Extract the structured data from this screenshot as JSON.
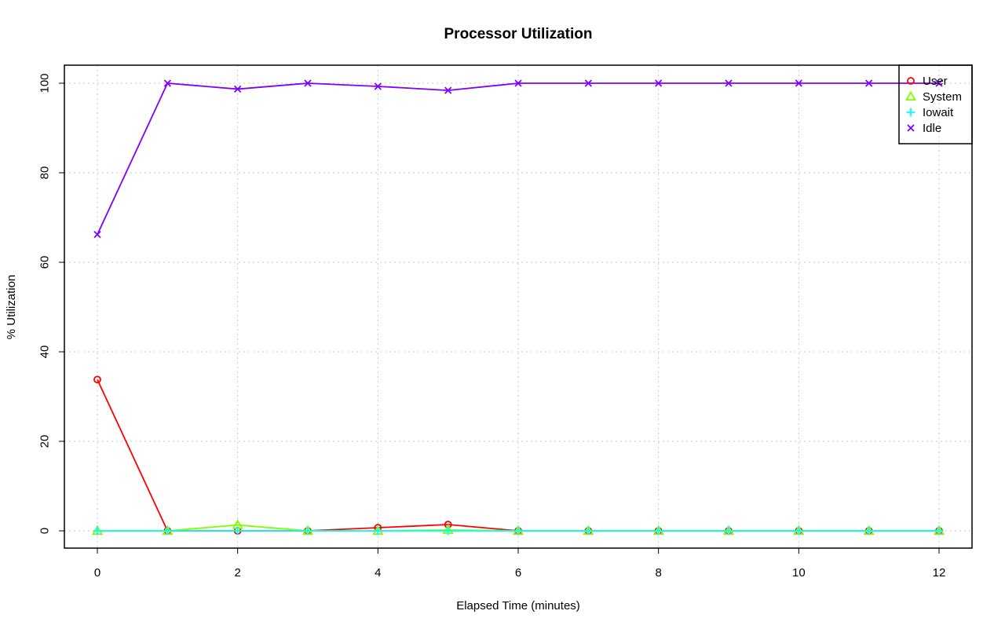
{
  "chart_data": {
    "type": "line",
    "title": "Processor Utilization",
    "xlabel": "Elapsed Time (minutes)",
    "ylabel": "% Utilization",
    "xlim": [
      0,
      12
    ],
    "ylim": [
      0,
      100
    ],
    "xticks": [
      0,
      2,
      4,
      6,
      8,
      10,
      12
    ],
    "yticks": [
      0,
      20,
      40,
      60,
      80,
      100
    ],
    "grid": true,
    "legend_position": "top-right",
    "x": [
      0,
      1,
      2,
      3,
      4,
      5,
      6,
      7,
      8,
      9,
      10,
      11,
      12
    ],
    "series": [
      {
        "name": "User",
        "color": "#ff0000",
        "marker": "circle",
        "values": [
          33.8,
          0,
          0,
          0,
          0.7,
          1.4,
          0,
          0,
          0,
          0,
          0,
          0,
          0
        ]
      },
      {
        "name": "System",
        "color": "#80ff00",
        "marker": "triangle",
        "values": [
          0,
          0,
          1.3,
          0,
          0,
          0.2,
          0,
          0,
          0,
          0,
          0,
          0,
          0
        ]
      },
      {
        "name": "Iowait",
        "color": "#00ffff",
        "marker": "plus",
        "values": [
          0,
          0,
          0,
          0,
          0,
          0,
          0,
          0,
          0,
          0,
          0,
          0,
          0
        ]
      },
      {
        "name": "Idle",
        "color": "#8000ff",
        "marker": "cross",
        "values": [
          66.2,
          100,
          98.7,
          100,
          99.3,
          98.4,
          100,
          100,
          100,
          100,
          100,
          100,
          100
        ]
      }
    ]
  }
}
